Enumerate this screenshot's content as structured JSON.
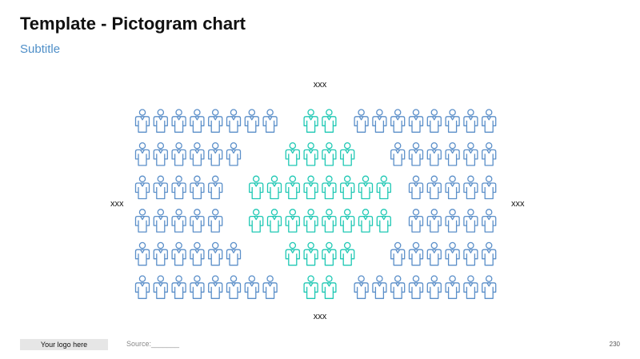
{
  "title": "Template - Pictogram chart",
  "subtitle": "Subtitle",
  "footer": {
    "logo": "Your logo here",
    "source": "Source:_______",
    "page_number": "230"
  },
  "colors": {
    "subtitle": "#4f8fc8",
    "blue_icon": "#5b8fc9",
    "teal_icon": "#1fc8b4"
  },
  "chart_data": {
    "type": "pictogram",
    "icon": "person-icon",
    "labels": {
      "top": "xxx",
      "bottom": "xxx",
      "left": "xxx",
      "right": "xxx"
    },
    "rows": [
      {
        "blue_left": 8,
        "teal": 2,
        "blue_right": 8
      },
      {
        "blue_left": 6,
        "teal": 4,
        "blue_right": 6
      },
      {
        "blue_left": 5,
        "teal": 8,
        "blue_right": 5
      },
      {
        "blue_left": 5,
        "teal": 8,
        "blue_right": 5
      },
      {
        "blue_left": 6,
        "teal": 4,
        "blue_right": 6
      },
      {
        "blue_left": 8,
        "teal": 2,
        "blue_right": 8
      }
    ]
  }
}
